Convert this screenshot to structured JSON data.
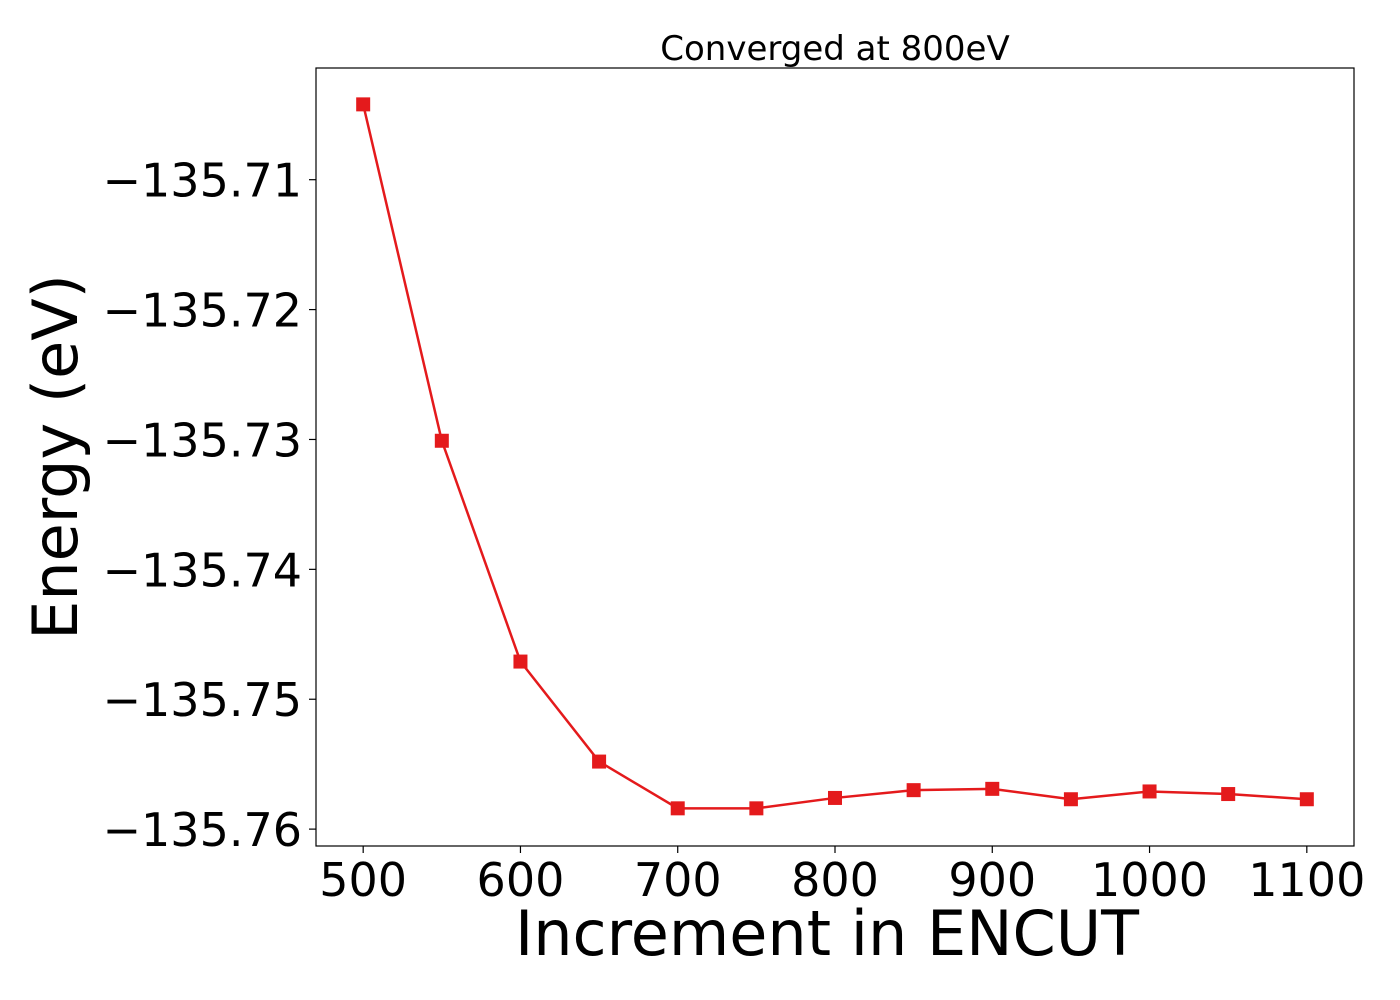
{
  "chart_data": {
    "type": "line",
    "title": "Converged at 800eV",
    "xlabel": "Increment in ENCUT",
    "ylabel": "Energy (eV)",
    "xlim": [
      470,
      1130
    ],
    "ylim": [
      -135.7613,
      -135.7014
    ],
    "xticks": [
      500,
      600,
      700,
      800,
      900,
      1000,
      1100
    ],
    "yticks": [
      -135.71,
      -135.72,
      -135.73,
      -135.74,
      -135.75,
      -135.76
    ],
    "ytick_labels": [
      "−135.71",
      "−135.72",
      "−135.73",
      "−135.74",
      "−135.75",
      "−135.76"
    ],
    "grid": false,
    "color": "#e41a1c",
    "marker": "square",
    "series": [
      {
        "x": [
          500,
          550,
          600,
          650,
          700,
          750,
          800,
          850,
          900,
          950,
          1000,
          1050,
          1100
        ],
        "values": [
          -135.7042,
          -135.7301,
          -135.7471,
          -135.7548,
          -135.7584,
          -135.7584,
          -135.7576,
          -135.757,
          -135.7569,
          -135.7577,
          -135.7571,
          -135.7573,
          -135.7577
        ]
      }
    ]
  }
}
